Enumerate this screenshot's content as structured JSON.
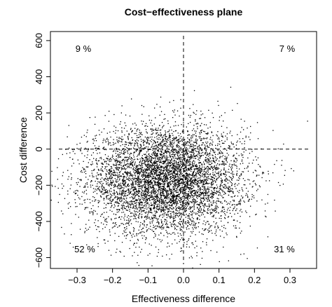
{
  "chart_data": {
    "type": "scatter",
    "title": "Cost−effectiveness plane",
    "xlabel": "Effectiveness difference",
    "ylabel": "Cost difference",
    "xlim": [
      -0.375,
      0.375
    ],
    "ylim": [
      -660,
      650
    ],
    "x_ticks": [
      -0.3,
      -0.2,
      -0.1,
      0.0,
      0.1,
      0.2,
      0.3
    ],
    "x_tick_labels": [
      "−0.3",
      "−0.2",
      "−0.1",
      "0.0",
      "0.1",
      "0.2",
      "0.3"
    ],
    "y_ticks": [
      -600,
      -400,
      -200,
      0,
      200,
      400,
      600
    ],
    "y_tick_labels": [
      "−600",
      "−400",
      "−200",
      "0",
      "200",
      "400",
      "600"
    ],
    "reference_lines": {
      "x": 0,
      "y": 0,
      "style": "dashed"
    },
    "grid": false,
    "point_cloud": {
      "n_points": 6000,
      "mean_x": -0.05,
      "mean_y": -170,
      "sd_x": 0.11,
      "sd_y": 150
    },
    "quadrants": [
      {
        "label": "9 %",
        "position": "top-left"
      },
      {
        "label": "7 %",
        "position": "top-right"
      },
      {
        "label": "52 %",
        "position": "bottom-left"
      },
      {
        "label": "31 %",
        "position": "bottom-right"
      }
    ]
  }
}
